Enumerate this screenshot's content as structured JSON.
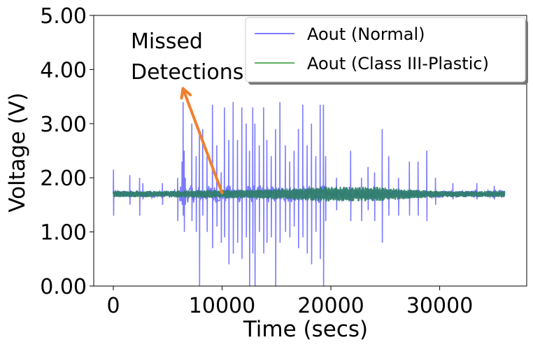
{
  "chart_data": {
    "type": "line",
    "title": "",
    "xlabel": "Time (secs)",
    "ylabel": "Voltage (V)",
    "xlim": [
      -1800,
      38000
    ],
    "ylim": [
      0,
      5
    ],
    "x_ticks": [
      0,
      10000,
      20000,
      30000
    ],
    "x_tick_labels": [
      "0",
      "10000",
      "20000",
      "30000"
    ],
    "y_ticks": [
      0,
      1,
      2,
      3,
      4,
      5
    ],
    "y_tick_labels": [
      "0.00",
      "1.00",
      "2.00",
      "3.00",
      "4.00",
      "5.00"
    ],
    "legend_position": "top-right",
    "series": [
      {
        "name": "Aout (Normal)",
        "color": "#7b7bff",
        "x_range": [
          0,
          36000
        ],
        "baseline": 1.7,
        "spikes": [
          [
            0,
            2.15,
            1.3
          ],
          [
            1500,
            2.05,
            1.5
          ],
          [
            2400,
            2.0,
            1.3
          ],
          [
            2700,
            1.9,
            1.6
          ],
          [
            4500,
            1.9,
            1.5
          ],
          [
            5900,
            2.0,
            1.2
          ],
          [
            6300,
            2.3,
            1.5
          ],
          [
            6400,
            3.4,
            1.3
          ],
          [
            6500,
            2.5,
            1.0
          ],
          [
            6600,
            2.0,
            1.5
          ],
          [
            7200,
            3.0,
            1.2
          ],
          [
            7600,
            2.4,
            1.0
          ],
          [
            7900,
            2.8,
            0.0
          ],
          [
            8200,
            2.9,
            1.3
          ],
          [
            8600,
            2.4,
            1.0
          ],
          [
            9100,
            3.35,
            0.7
          ],
          [
            9500,
            2.6,
            1.1
          ],
          [
            9900,
            2.1,
            0.8
          ],
          [
            10200,
            3.3,
            0.9
          ],
          [
            10600,
            2.7,
            0.4
          ],
          [
            11000,
            3.4,
            0.6
          ],
          [
            11400,
            2.7,
            0.8
          ],
          [
            11800,
            3.3,
            0.5
          ],
          [
            12200,
            3.0,
            0.9
          ],
          [
            12500,
            2.5,
            0.0
          ],
          [
            12800,
            3.3,
            0.6
          ],
          [
            13000,
            3.0,
            0.0
          ],
          [
            13400,
            2.6,
            1.0
          ],
          [
            13800,
            3.3,
            0.6
          ],
          [
            14100,
            2.7,
            0.8
          ],
          [
            14500,
            2.4,
            0.9
          ],
          [
            14900,
            2.9,
            0.0
          ],
          [
            15300,
            3.4,
            0.8
          ],
          [
            15800,
            2.6,
            1.0
          ],
          [
            16200,
            2.3,
            0.9
          ],
          [
            16600,
            2.5,
            1.1
          ],
          [
            17000,
            2.9,
            0.7
          ],
          [
            17400,
            3.35,
            0.9
          ],
          [
            17800,
            2.6,
            0.6
          ],
          [
            18200,
            3.0,
            0.4
          ],
          [
            18600,
            2.4,
            1.0
          ],
          [
            19000,
            3.35,
            0.5
          ],
          [
            19300,
            3.35,
            0.0
          ],
          [
            19500,
            2.4,
            1.2
          ],
          [
            20500,
            2.0,
            1.4
          ],
          [
            21800,
            2.5,
            1.2
          ],
          [
            22800,
            2.0,
            1.2
          ],
          [
            23400,
            2.2,
            1.4
          ],
          [
            24000,
            2.1,
            1.2
          ],
          [
            24700,
            2.9,
            0.8
          ],
          [
            25300,
            2.4,
            1.3
          ],
          [
            26200,
            2.0,
            1.3
          ],
          [
            27200,
            2.3,
            1.3
          ],
          [
            28000,
            2.3,
            1.3
          ],
          [
            28800,
            2.5,
            1.2
          ],
          [
            29600,
            2.0,
            1.5
          ],
          [
            31200,
            1.9,
            1.6
          ],
          [
            33400,
            1.9,
            1.6
          ],
          [
            35000,
            1.85,
            1.6
          ]
        ]
      },
      {
        "name": "Aout (Class III-Plastic)",
        "color": "#2e7d6b",
        "x_range": [
          0,
          36000
        ],
        "baseline": 1.7,
        "noise_band": [
          [
            0,
            0.06
          ],
          [
            5000,
            0.06
          ],
          [
            6000,
            0.07
          ],
          [
            9000,
            0.08
          ],
          [
            12000,
            0.08
          ],
          [
            15000,
            0.1
          ],
          [
            18000,
            0.12
          ],
          [
            19500,
            0.15
          ],
          [
            20000,
            0.14
          ],
          [
            24000,
            0.14
          ],
          [
            25000,
            0.12
          ],
          [
            28000,
            0.08
          ],
          [
            30000,
            0.06
          ],
          [
            36000,
            0.06
          ]
        ]
      }
    ],
    "annotation": {
      "text_lines": [
        "Missed",
        "Detections"
      ],
      "arrow_color": "#f08030",
      "arrow_from": [
        10000,
        1.72
      ],
      "arrow_to": [
        6400,
        3.65
      ]
    }
  }
}
